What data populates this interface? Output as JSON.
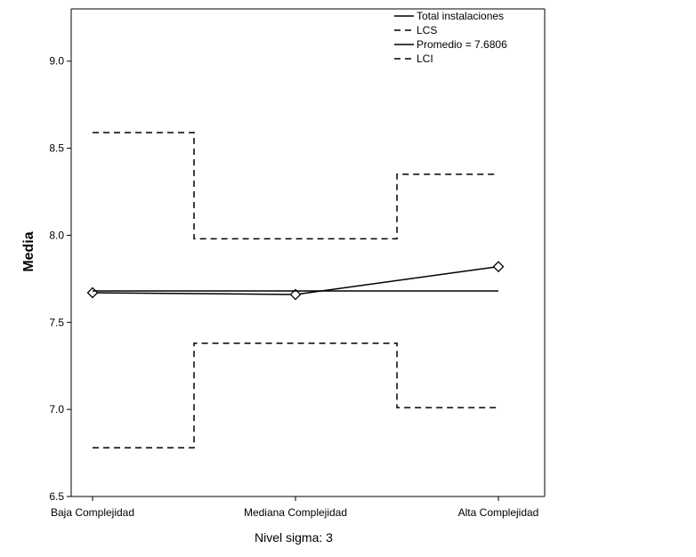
{
  "chart_data": {
    "type": "line",
    "title": "",
    "xlabel": "",
    "ylabel": "Media",
    "note": "Nivel sigma: 3",
    "categories": [
      "Baja Complejidad",
      "Mediana Complejidad",
      "Alta Complejidad"
    ],
    "ylim": [
      6.5,
      9.3
    ],
    "yticks": [
      "6.5",
      "7.0",
      "7.5",
      "8.0",
      "8.5",
      "9.0"
    ],
    "grid": false,
    "legend_position": "top-right",
    "series": [
      {
        "name": "Total instalaciones",
        "values": [
          7.67,
          7.66,
          7.82
        ],
        "style": "solid",
        "markers": true,
        "color": "#000000"
      },
      {
        "name": "LCS",
        "values": [
          8.59,
          7.98,
          8.35
        ],
        "style": "dashed",
        "step": true,
        "color": "#000000"
      },
      {
        "name": "Promedio = 7.6806",
        "values": [
          7.6806,
          7.6806,
          7.6806
        ],
        "style": "solid",
        "color": "#000000"
      },
      {
        "name": "LCI",
        "values": [
          6.78,
          7.38,
          7.01
        ],
        "style": "dashed",
        "step": true,
        "color": "#000000"
      }
    ]
  }
}
